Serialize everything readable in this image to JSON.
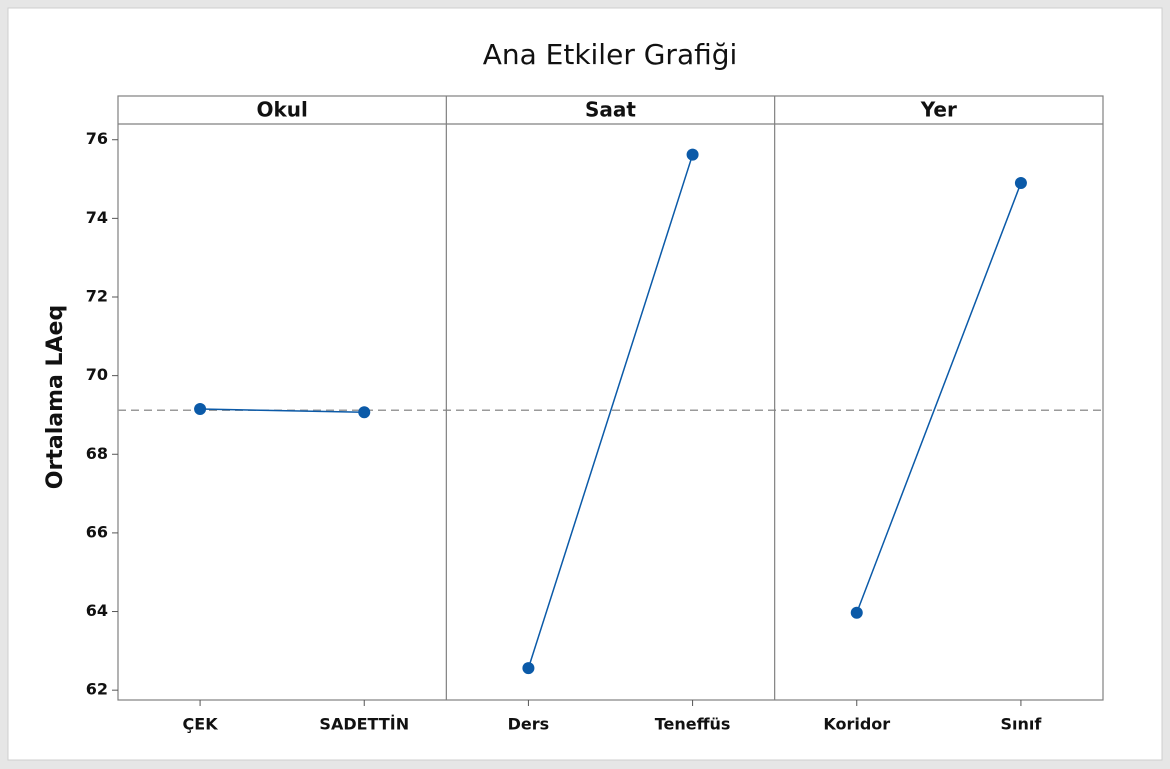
{
  "chart_data": {
    "type": "line",
    "title": "Ana Etkiler Grafiği",
    "ylabel": "Ortalama LAeq",
    "ylim": [
      61.75,
      76.4
    ],
    "yticks": [
      62,
      64,
      66,
      68,
      70,
      72,
      74,
      76
    ],
    "reference_line": 69.12,
    "color": "#0b5aa8",
    "panels": [
      {
        "name": "Okul",
        "categories": [
          "ÇEK",
          "SADETTİN"
        ],
        "values": [
          69.15,
          69.07
        ]
      },
      {
        "name": "Saat",
        "categories": [
          "Ders",
          "Teneffüs"
        ],
        "values": [
          62.56,
          75.62
        ]
      },
      {
        "name": "Yer",
        "categories": [
          "Koridor",
          "Sınıf"
        ],
        "values": [
          63.97,
          74.9
        ]
      }
    ]
  }
}
